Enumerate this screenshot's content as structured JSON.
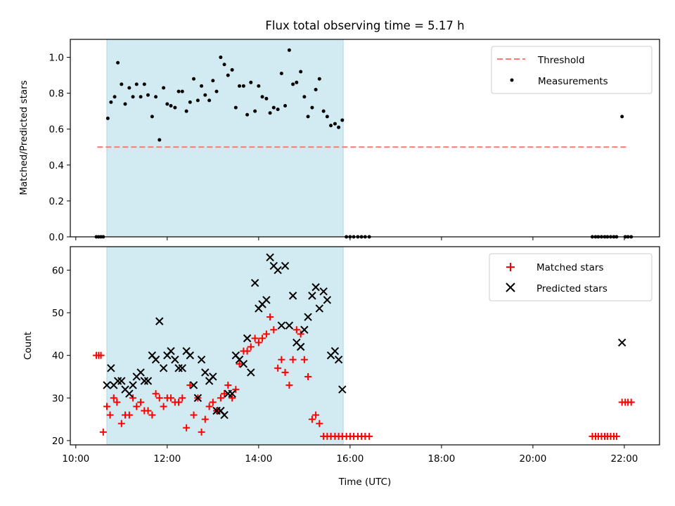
{
  "figure": {
    "title": "Flux total observing time = 5.17 h"
  },
  "chart_data": [
    {
      "type": "scatter",
      "xlabel": "",
      "ylabel": "Matched/Predicted stars",
      "xlim": [
        9.88,
        22.77
      ],
      "ylim": [
        0.0,
        1.1
      ],
      "x_ticks": [
        10,
        12,
        14,
        16,
        18,
        20,
        22
      ],
      "x_ticklabels": [],
      "y_ticks": [
        0.0,
        0.2,
        0.4,
        0.6,
        0.8,
        1.0
      ],
      "y_ticklabels": [
        "0.0",
        "0.2",
        "0.4",
        "0.6",
        "0.8",
        "1.0"
      ],
      "grid": false,
      "legend_position": "top-right",
      "shaded_interval": {
        "x": [
          10.68,
          15.85
        ],
        "color": "#add8e6"
      },
      "series": [
        {
          "name": "Threshold",
          "kind": "line",
          "style": "dashed",
          "color": "#ff7777",
          "x": [
            10.47,
            22.1
          ],
          "y": [
            0.5,
            0.5
          ]
        },
        {
          "name": "Measurements",
          "kind": "points",
          "color": "#000000",
          "x": [
            10.45,
            10.5,
            10.55,
            10.6,
            10.7,
            10.77,
            10.85,
            10.92,
            11.0,
            11.08,
            11.17,
            11.25,
            11.33,
            11.42,
            11.5,
            11.58,
            11.67,
            11.75,
            11.83,
            11.92,
            12.0,
            12.08,
            12.17,
            12.25,
            12.33,
            12.42,
            12.5,
            12.58,
            12.67,
            12.75,
            12.83,
            12.92,
            13.0,
            13.08,
            13.17,
            13.25,
            13.33,
            13.42,
            13.5,
            13.58,
            13.67,
            13.75,
            13.83,
            13.92,
            14.0,
            14.08,
            14.17,
            14.25,
            14.33,
            14.42,
            14.5,
            14.58,
            14.67,
            14.75,
            14.83,
            14.92,
            15.0,
            15.08,
            15.17,
            15.25,
            15.33,
            15.42,
            15.5,
            15.58,
            15.67,
            15.75,
            15.83,
            15.92,
            16.0,
            16.08,
            16.17,
            16.25,
            16.33,
            16.42,
            21.3,
            21.37,
            21.43,
            21.5,
            21.57,
            21.63,
            21.7,
            21.77,
            21.83,
            21.95,
            22.02,
            22.08,
            22.15
          ],
          "y": [
            0.0,
            0.0,
            0.0,
            0.0,
            0.66,
            0.75,
            0.78,
            0.97,
            0.85,
            0.74,
            0.83,
            0.78,
            0.85,
            0.78,
            0.85,
            0.79,
            0.67,
            0.78,
            0.54,
            0.83,
            0.74,
            0.73,
            0.72,
            0.81,
            0.81,
            0.7,
            0.75,
            0.88,
            0.76,
            0.84,
            0.79,
            0.76,
            0.87,
            0.81,
            1.0,
            0.96,
            0.9,
            0.93,
            0.72,
            0.84,
            0.84,
            0.68,
            0.86,
            0.7,
            0.84,
            0.78,
            0.77,
            0.69,
            0.72,
            0.71,
            0.91,
            0.73,
            1.04,
            0.85,
            0.86,
            0.92,
            0.78,
            0.67,
            0.72,
            0.82,
            0.88,
            0.7,
            0.67,
            0.62,
            0.63,
            0.61,
            0.65,
            0.0,
            0.0,
            0.0,
            0.0,
            0.0,
            0.0,
            0.0,
            0.0,
            0.0,
            0.0,
            0.0,
            0.0,
            0.0,
            0.0,
            0.0,
            0.0,
            0.67,
            0.0,
            0.0,
            0.0
          ]
        }
      ]
    },
    {
      "type": "scatter",
      "xlabel": "Time (UTC)",
      "ylabel": "Count",
      "xlim": [
        9.88,
        22.77
      ],
      "ylim": [
        19.0,
        65.5
      ],
      "x_ticks": [
        10,
        12,
        14,
        16,
        18,
        20,
        22
      ],
      "x_ticklabels": [
        "10:00",
        "12:00",
        "14:00",
        "16:00",
        "18:00",
        "20:00",
        "22:00"
      ],
      "y_ticks": [
        20,
        30,
        40,
        50,
        60
      ],
      "y_ticklabels": [
        "20",
        "30",
        "40",
        "50",
        "60"
      ],
      "grid": false,
      "legend_position": "top-right",
      "shaded_interval": {
        "x": [
          10.68,
          15.85
        ],
        "color": "#add8e6"
      },
      "series": [
        {
          "name": "Matched stars",
          "kind": "plus",
          "color": "#ff0000",
          "x": [
            10.45,
            10.5,
            10.55,
            10.6,
            10.68,
            10.75,
            10.83,
            10.9,
            11.0,
            11.08,
            11.17,
            11.25,
            11.33,
            11.42,
            11.5,
            11.58,
            11.67,
            11.75,
            11.83,
            11.92,
            12.0,
            12.08,
            12.17,
            12.25,
            12.33,
            12.42,
            12.5,
            12.58,
            12.67,
            12.75,
            12.83,
            12.92,
            13.0,
            13.08,
            13.17,
            13.25,
            13.33,
            13.42,
            13.5,
            13.58,
            13.67,
            13.75,
            13.83,
            13.92,
            14.0,
            14.08,
            14.17,
            14.25,
            14.33,
            14.42,
            14.5,
            14.58,
            14.67,
            14.75,
            14.83,
            14.92,
            15.0,
            15.08,
            15.17,
            15.25,
            15.33,
            15.42,
            15.5,
            15.58,
            15.67,
            15.75,
            15.83,
            15.92,
            16.0,
            16.08,
            16.17,
            16.25,
            16.33,
            16.42,
            21.3,
            21.37,
            21.43,
            21.5,
            21.57,
            21.63,
            21.7,
            21.77,
            21.83,
            21.95,
            22.02,
            22.08,
            22.15
          ],
          "y": [
            40,
            40,
            40,
            22,
            28,
            26,
            30,
            29,
            24,
            26,
            26,
            30,
            28,
            29,
            27,
            27,
            26,
            31,
            30,
            28,
            30,
            30,
            29,
            29,
            30,
            23,
            33,
            26,
            30,
            22,
            25,
            28,
            29,
            27,
            30,
            31,
            33,
            30,
            32,
            38,
            41,
            41,
            42,
            44,
            43,
            44,
            45,
            49,
            46,
            37,
            39,
            36,
            33,
            39,
            46,
            45,
            39,
            35,
            25,
            26,
            24,
            21,
            21,
            21,
            21,
            21,
            21,
            21,
            21,
            21,
            21,
            21,
            21,
            21,
            21,
            21,
            21,
            21,
            21,
            21,
            21,
            21,
            21,
            29,
            29,
            29,
            29
          ]
        },
        {
          "name": "Predicted stars",
          "kind": "cross",
          "color": "#000000",
          "x": [
            10.68,
            10.77,
            10.83,
            10.92,
            11.0,
            11.08,
            11.17,
            11.25,
            11.33,
            11.42,
            11.5,
            11.58,
            11.67,
            11.75,
            11.83,
            11.92,
            12.0,
            12.08,
            12.17,
            12.25,
            12.33,
            12.42,
            12.5,
            12.58,
            12.67,
            12.75,
            12.83,
            12.92,
            13.0,
            13.08,
            13.17,
            13.25,
            13.33,
            13.42,
            13.5,
            13.58,
            13.67,
            13.75,
            13.83,
            13.92,
            14.0,
            14.08,
            14.17,
            14.25,
            14.33,
            14.42,
            14.5,
            14.58,
            14.67,
            14.75,
            14.83,
            14.92,
            15.0,
            15.08,
            15.17,
            15.25,
            15.33,
            15.42,
            15.5,
            15.58,
            15.67,
            15.75,
            15.83,
            21.95
          ],
          "y": [
            33,
            37,
            33,
            34,
            34,
            32,
            31,
            33,
            35,
            36,
            34,
            34,
            40,
            39,
            48,
            37,
            40,
            41,
            39,
            37,
            37,
            41,
            40,
            33,
            30,
            39,
            36,
            34,
            35,
            27,
            27,
            26,
            31,
            31,
            40,
            39,
            38,
            44,
            36,
            57,
            51,
            52,
            53,
            63,
            61,
            60,
            47,
            61,
            47,
            54,
            43,
            42,
            46,
            49,
            54,
            56,
            51,
            55,
            53,
            40,
            41,
            39,
            32,
            43
          ]
        }
      ]
    }
  ]
}
